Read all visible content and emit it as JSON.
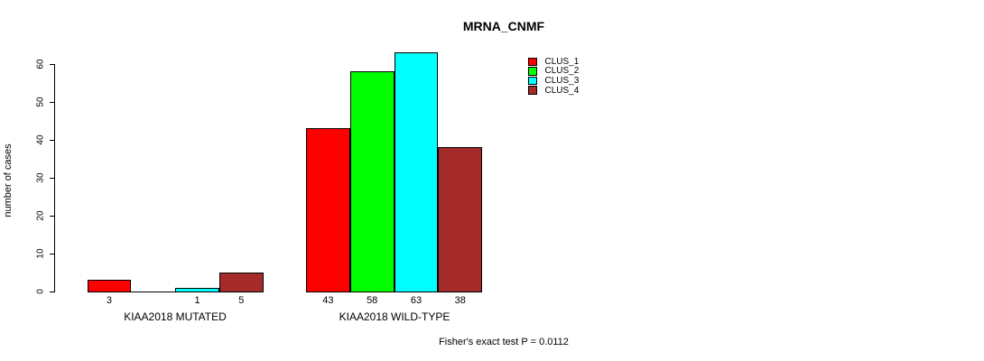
{
  "chart_data": {
    "type": "bar",
    "title": "MRNA_CNMF",
    "xlabel": "",
    "ylabel": "number of cases",
    "ylim": [
      0,
      60
    ],
    "yticks": [
      0,
      10,
      20,
      30,
      40,
      50,
      60
    ],
    "grid": false,
    "legend_position": "top-right",
    "categories": [
      "KIAA2018 MUTATED",
      "KIAA2018 WILD-TYPE"
    ],
    "series": [
      {
        "name": "CLUS_1",
        "color": "#ff0000",
        "values": [
          3,
          43
        ]
      },
      {
        "name": "CLUS_2",
        "color": "#00ff00",
        "values": [
          0,
          58
        ]
      },
      {
        "name": "CLUS_3",
        "color": "#00ffff",
        "values": [
          1,
          63
        ]
      },
      {
        "name": "CLUS_4",
        "color": "#a52a2a",
        "values": [
          5,
          38
        ]
      }
    ],
    "bar_value_labels": [
      [
        "3",
        "",
        "1",
        "5"
      ],
      [
        "43",
        "58",
        "63",
        "38"
      ]
    ],
    "annotation": "Fisher's exact test P = 0.0112"
  }
}
